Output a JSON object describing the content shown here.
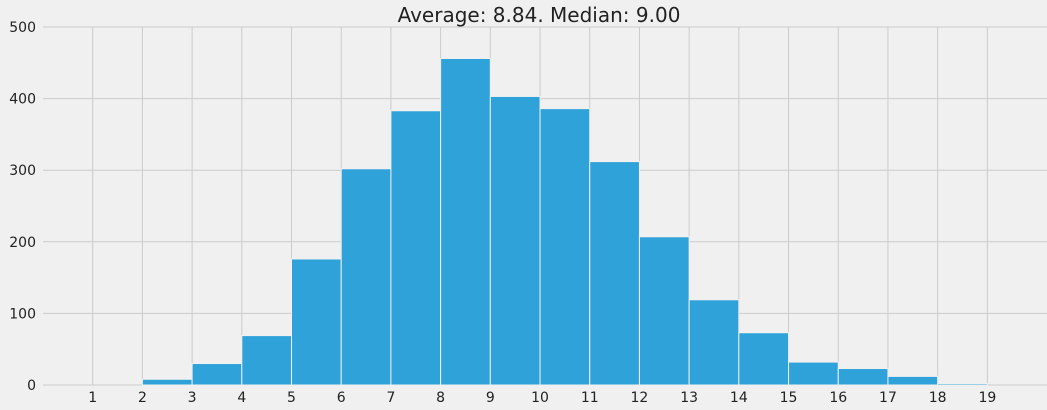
{
  "chart_data": {
    "type": "bar",
    "title": "Average: 8.84.   Median: 9.00",
    "xlabel": "",
    "ylabel": "",
    "bins": [
      {
        "start": 2,
        "end": 3,
        "count": 8
      },
      {
        "start": 3,
        "end": 4,
        "count": 30
      },
      {
        "start": 4,
        "end": 5,
        "count": 69
      },
      {
        "start": 5,
        "end": 6,
        "count": 176
      },
      {
        "start": 6,
        "end": 7,
        "count": 302
      },
      {
        "start": 7,
        "end": 8,
        "count": 383
      },
      {
        "start": 8,
        "end": 9,
        "count": 456
      },
      {
        "start": 9,
        "end": 10,
        "count": 403
      },
      {
        "start": 10,
        "end": 11,
        "count": 386
      },
      {
        "start": 11,
        "end": 12,
        "count": 312
      },
      {
        "start": 12,
        "end": 13,
        "count": 207
      },
      {
        "start": 13,
        "end": 14,
        "count": 119
      },
      {
        "start": 14,
        "end": 15,
        "count": 73
      },
      {
        "start": 15,
        "end": 16,
        "count": 32
      },
      {
        "start": 16,
        "end": 17,
        "count": 23
      },
      {
        "start": 17,
        "end": 18,
        "count": 12
      },
      {
        "start": 18,
        "end": 19,
        "count": 2
      }
    ],
    "x_ticks": [
      "1",
      "2",
      "3",
      "4",
      "5",
      "6",
      "7",
      "8",
      "9",
      "10",
      "11",
      "12",
      "13",
      "14",
      "15",
      "16",
      "17",
      "18",
      "19"
    ],
    "y_ticks": [
      "0",
      "100",
      "200",
      "300",
      "400",
      "500"
    ],
    "xlim": [
      0.0,
      20.2
    ],
    "ylim": [
      0,
      500
    ],
    "grid": true,
    "colors": {
      "bar": "#30a2da",
      "bar_edge": "#f0f0f0",
      "grid": "#cbcbcb",
      "background": "#f0f0f0"
    }
  }
}
